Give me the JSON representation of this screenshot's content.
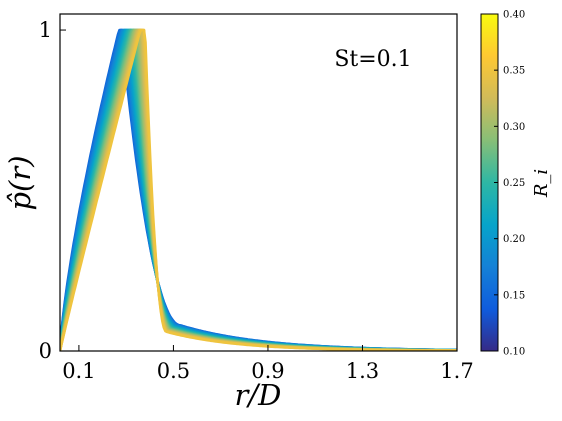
{
  "chart_data": {
    "type": "line",
    "annotation": "St=0.1",
    "xlabel": "r/D",
    "ylabel": "p̂(r)",
    "xlim": [
      0.02,
      1.7
    ],
    "ylim": [
      0,
      1.05
    ],
    "xticks": [
      0.1,
      0.5,
      0.9,
      1.3,
      1.7
    ],
    "xtick_labels": [
      "0.1",
      "0.5",
      "0.9",
      "1.3",
      "1.7"
    ],
    "yticks": [
      0,
      1
    ],
    "ytick_labels": [
      "0",
      "1"
    ],
    "grid": false,
    "legend": "none",
    "colorbar": {
      "label": "R_i",
      "range": [
        0.1,
        0.4
      ],
      "ticks": [
        "0.10",
        "0.15",
        "0.20",
        "0.25",
        "0.30",
        "0.35",
        "0.40"
      ],
      "colormap": [
        "#352a87",
        "#0f5cdd",
        "#1481d6",
        "#06a4ca",
        "#2eb7a4",
        "#87bf77",
        "#d1bb59",
        "#fec832",
        "#f9fb0e"
      ]
    },
    "curve_profile": {
      "comment_free": true,
      "Ri": [
        0.1,
        0.4
      ],
      "peak_left_r": [
        0.27,
        0.36
      ],
      "peak_right_r": [
        0.28,
        0.38
      ],
      "drop_r": [
        0.53,
        0.47
      ],
      "value_at_0_5": [
        0.08,
        0.06
      ],
      "tail_value_at_1_7": [
        0.003,
        0.001
      ]
    },
    "series_count": 24
  }
}
